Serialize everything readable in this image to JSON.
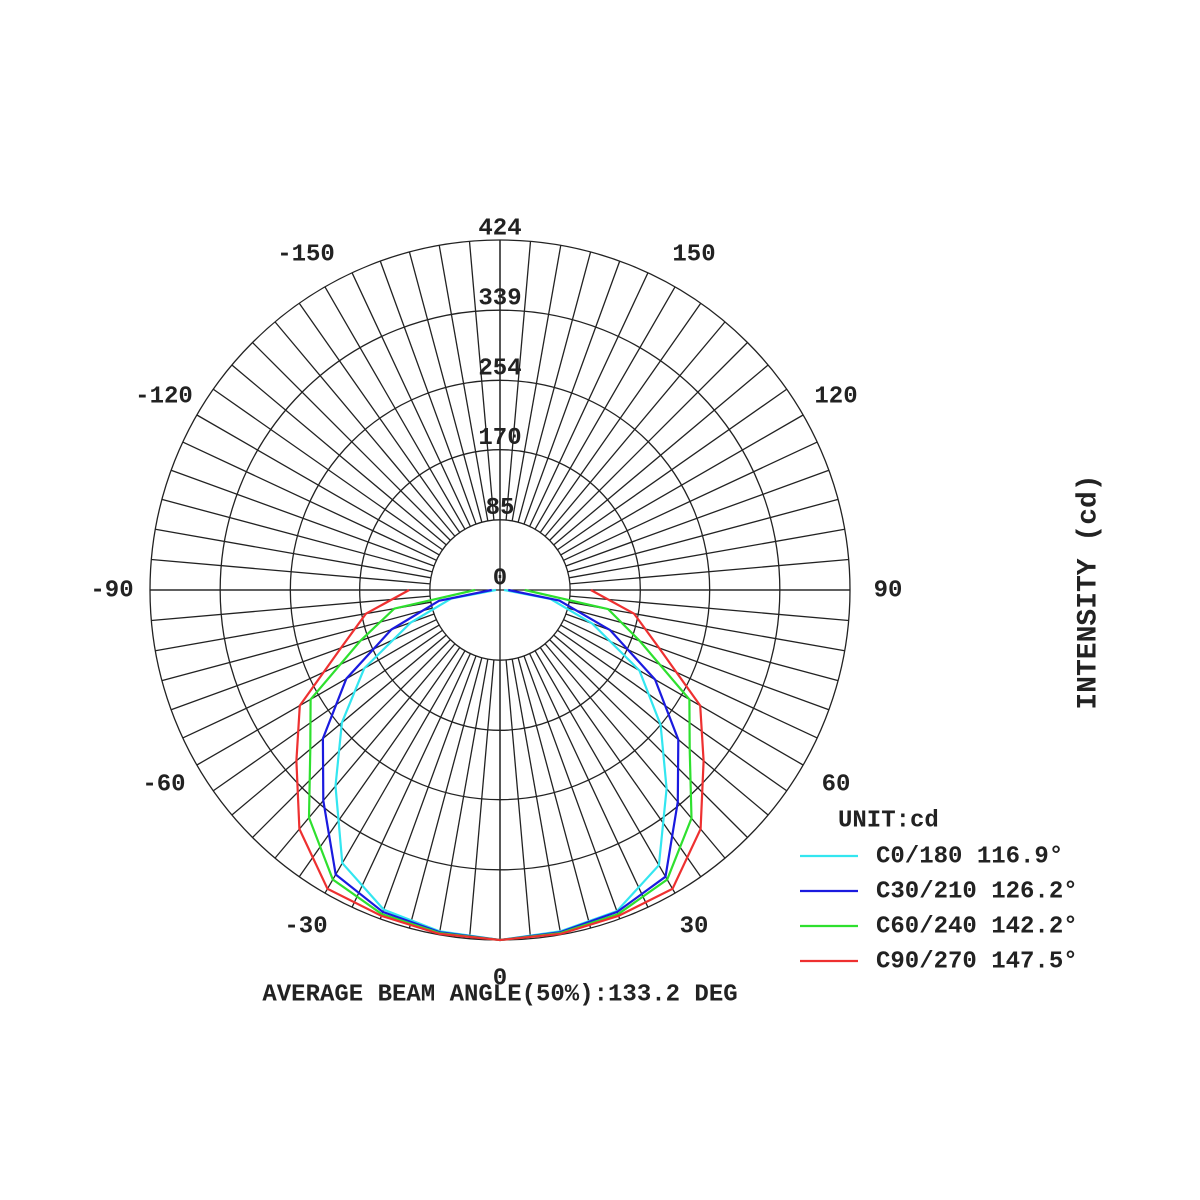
{
  "chart_data": {
    "type": "polar",
    "axis_title": "INTENSITY (cd)",
    "unit_label": "UNIT:cd",
    "footer": "AVERAGE BEAM ANGLE(50%):133.2 DEG",
    "theta": [
      -90,
      -80,
      -70,
      -60,
      -50,
      -40,
      -30,
      -20,
      -10,
      0,
      10,
      20,
      30,
      40,
      50,
      60,
      70,
      80,
      90
    ],
    "rlim": [
      0,
      424
    ],
    "rticks": [
      0,
      85,
      170,
      254,
      339,
      424
    ],
    "thetaticks": [
      -150,
      -120,
      -90,
      -60,
      -30,
      0,
      30,
      60,
      90,
      120,
      150
    ],
    "series": [
      {
        "name": "C0/180 116.9°",
        "color": "#33e6f0",
        "values": [
          5,
          60,
          115,
          190,
          250,
          310,
          382,
          412,
          420,
          424,
          420,
          414,
          385,
          314,
          254,
          195,
          119,
          62,
          5
        ]
      },
      {
        "name": "C30/210 126.2°",
        "color": "#1a1adf",
        "values": [
          10,
          75,
          140,
          215,
          280,
          333,
          398,
          415,
          421,
          424,
          421,
          415,
          401,
          335,
          282,
          217,
          142,
          73,
          10
        ]
      },
      {
        "name": "C60/240 142.2°",
        "color": "#2ee02e",
        "values": [
          30,
          130,
          180,
          265,
          300,
          360,
          405,
          418,
          422,
          424,
          422,
          418,
          405,
          361,
          300,
          265,
          180,
          133,
          30
        ]
      },
      {
        "name": "C90/270 147.5°",
        "color": "#ee3030",
        "values": [
          110,
          165,
          205,
          280,
          322,
          378,
          418,
          420,
          423,
          424,
          423,
          420,
          418,
          378,
          322,
          280,
          205,
          165,
          110
        ]
      }
    ]
  }
}
